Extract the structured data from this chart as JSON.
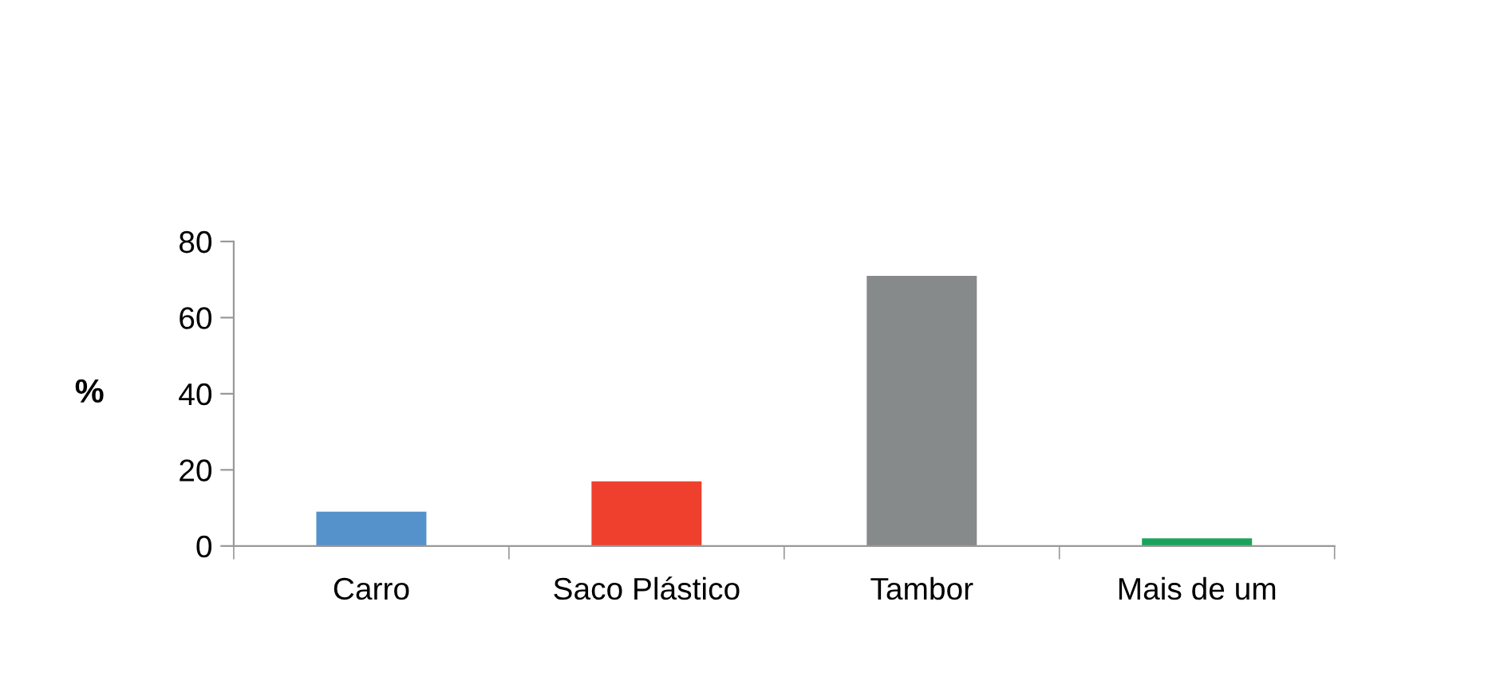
{
  "chart_data": {
    "type": "bar",
    "ylabel": "%",
    "categories": [
      "Carro",
      "Saco Plástico",
      "Tambor",
      "Mais de um"
    ],
    "values": [
      9,
      17,
      71,
      2
    ],
    "colors": [
      "#5592cb",
      "#ee402c",
      "#878a8b",
      "#1ba35c"
    ],
    "ylim": [
      0,
      80
    ],
    "yticks": [
      0,
      20,
      40,
      60,
      80
    ],
    "grid": false,
    "legend": false
  }
}
